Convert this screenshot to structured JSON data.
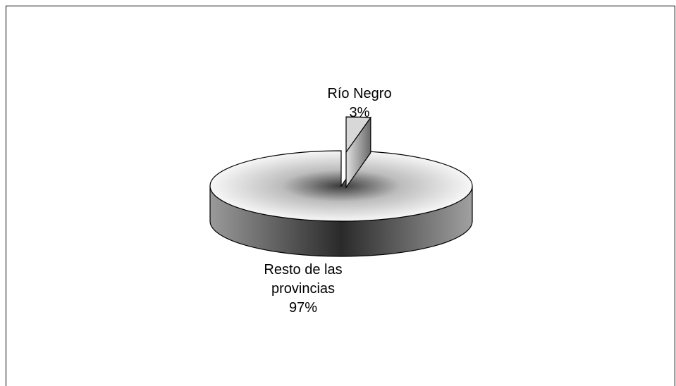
{
  "chart_data": {
    "type": "pie",
    "title": "",
    "slices": [
      {
        "label_lines": [
          "Río Negro"
        ],
        "percent_label": "3%",
        "value": 3
      },
      {
        "label_lines": [
          "Resto de las",
          "provincias"
        ],
        "percent_label": "97%",
        "value": 97
      }
    ],
    "legend": "none",
    "style": "3d-exploded"
  }
}
